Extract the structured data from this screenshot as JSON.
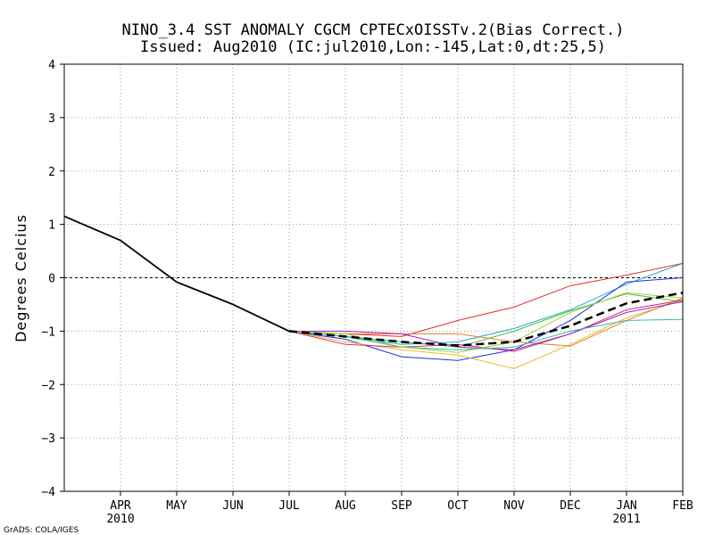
{
  "chart_data": {
    "type": "line",
    "title": "NINO_3.4 SST ANOMALY CGCM CPTECxOISSTv.2(Bias Correct.)",
    "subtitle": "Issued:  Aug2010 (IC:jul2010,Lon:-145,Lat:0,dt:25,5)",
    "ylabel": "Degrees Celcius",
    "xlabel": "",
    "ylim": [
      -4,
      4
    ],
    "xlim": [
      0,
      11
    ],
    "y_ticks": [
      4,
      3,
      2,
      1,
      0,
      -1,
      -2,
      -3,
      -4
    ],
    "y_tick_labels": [
      "4",
      "3",
      "2",
      "1",
      "0",
      "−1",
      "−2",
      "−3",
      "−4"
    ],
    "x_ticks": [
      {
        "x": 1,
        "label": "APR",
        "sub": "2010"
      },
      {
        "x": 2,
        "label": "MAY",
        "sub": ""
      },
      {
        "x": 3,
        "label": "JUN",
        "sub": ""
      },
      {
        "x": 4,
        "label": "JUL",
        "sub": ""
      },
      {
        "x": 5,
        "label": "AUG",
        "sub": ""
      },
      {
        "x": 6,
        "label": "SEP",
        "sub": ""
      },
      {
        "x": 7,
        "label": "OCT",
        "sub": ""
      },
      {
        "x": 8,
        "label": "NOV",
        "sub": ""
      },
      {
        "x": 9,
        "label": "DEC",
        "sub": ""
      },
      {
        "x": 10,
        "label": "JAN",
        "sub": "2011"
      },
      {
        "x": 11,
        "label": "FEB",
        "sub": ""
      }
    ],
    "grid": true,
    "zero_line": true,
    "observed": {
      "name": "observed",
      "x": [
        0,
        1,
        2,
        3,
        4
      ],
      "values": [
        1.15,
        0.7,
        -0.08,
        -0.5,
        -1.0
      ],
      "color": "#000000"
    },
    "ensemble_mean": {
      "name": "ensemble mean",
      "x": [
        4,
        5,
        6,
        7,
        8,
        9,
        10,
        11
      ],
      "values": [
        -1.0,
        -1.1,
        -1.2,
        -1.27,
        -1.2,
        -0.9,
        -0.48,
        -0.28
      ],
      "color": "#000000"
    },
    "members": [
      {
        "name": "member 1",
        "color": "#e03030",
        "x": [
          4,
          5,
          6,
          7,
          8,
          9,
          10,
          11
        ],
        "values": [
          -1.0,
          -1.05,
          -1.1,
          -0.8,
          -0.55,
          -0.15,
          0.05,
          0.27
        ]
      },
      {
        "name": "member 2",
        "color": "#20a8c8",
        "x": [
          4,
          5,
          6,
          7,
          8,
          9,
          10,
          11
        ],
        "values": [
          -1.0,
          -1.1,
          -1.25,
          -1.2,
          -0.95,
          -0.6,
          -0.12,
          0.27
        ]
      },
      {
        "name": "member 3",
        "color": "#2030e0",
        "x": [
          4,
          5,
          6,
          7,
          8,
          9,
          10,
          11
        ],
        "values": [
          -1.0,
          -1.15,
          -1.48,
          -1.55,
          -1.35,
          -0.8,
          -0.08,
          0.0
        ]
      },
      {
        "name": "member 4",
        "color": "#40c040",
        "x": [
          4,
          5,
          6,
          7,
          8,
          9,
          10,
          11
        ],
        "values": [
          -1.0,
          -1.1,
          -1.2,
          -1.3,
          -1.0,
          -0.62,
          -0.3,
          -0.45
        ]
      },
      {
        "name": "member 5",
        "color": "#e8c020",
        "x": [
          4,
          5,
          6,
          7,
          8,
          9,
          10,
          11
        ],
        "values": [
          -1.0,
          -1.2,
          -1.35,
          -1.45,
          -1.7,
          -1.25,
          -0.75,
          -0.42
        ]
      },
      {
        "name": "member 6",
        "color": "#e08020",
        "x": [
          4,
          5,
          6,
          7,
          8,
          9,
          10,
          11
        ],
        "values": [
          -1.0,
          -1.05,
          -1.05,
          -1.05,
          -1.2,
          -1.28,
          -0.8,
          -0.38
        ]
      },
      {
        "name": "member 7",
        "color": "#d03070",
        "x": [
          4,
          5,
          6,
          7,
          8,
          9,
          10,
          11
        ],
        "values": [
          -1.0,
          -1.25,
          -1.3,
          -1.25,
          -1.38,
          -1.05,
          -0.6,
          -0.42
        ]
      },
      {
        "name": "member 8",
        "color": "#a020d0",
        "x": [
          4,
          5,
          6,
          7,
          8,
          9,
          10,
          11
        ],
        "values": [
          -1.0,
          -1.0,
          -1.05,
          -1.3,
          -1.35,
          -1.05,
          -0.65,
          -0.45
        ]
      },
      {
        "name": "member 9",
        "color": "#30b8b0",
        "x": [
          4,
          5,
          6,
          7,
          8,
          9,
          10,
          11
        ],
        "values": [
          -1.0,
          -1.1,
          -1.3,
          -1.35,
          -1.3,
          -1.0,
          -0.8,
          -0.78
        ]
      },
      {
        "name": "member 10",
        "color": "#a0d030",
        "x": [
          4,
          5,
          6,
          7,
          8,
          9,
          10,
          11
        ],
        "values": [
          -1.0,
          -1.05,
          -1.3,
          -1.4,
          -1.2,
          -0.65,
          -0.28,
          -0.38
        ]
      }
    ]
  },
  "footer": "GrADS: COLA/IGES"
}
